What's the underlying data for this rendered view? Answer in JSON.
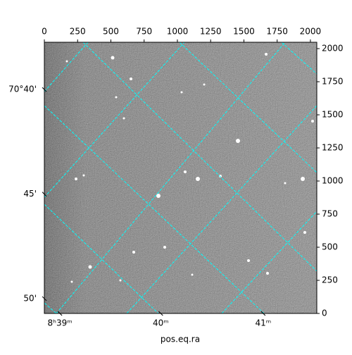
{
  "chart_data": {
    "type": "image",
    "xlabel": "pos.eq.ra",
    "xlim": [
      0,
      2048
    ],
    "ylim": [
      0,
      2048
    ],
    "xticks": [
      0,
      250,
      500,
      750,
      1000,
      1250,
      1500,
      1750,
      2000
    ],
    "yticks": [
      0,
      250,
      500,
      750,
      1000,
      1250,
      1500,
      1750,
      2000
    ],
    "ra_ticks": [
      {
        "value": 117,
        "label": "8ʰ39ᵐ"
      },
      {
        "value": 875,
        "label": "40ᵐ"
      },
      {
        "value": 1645,
        "label": "41ᵐ"
      }
    ],
    "dec_ticks": [
      {
        "value": 1691,
        "label": "70°40'"
      },
      {
        "value": 901,
        "label": "45'"
      },
      {
        "value": 112,
        "label": "50'"
      }
    ],
    "grid_color": "#00ffff"
  }
}
